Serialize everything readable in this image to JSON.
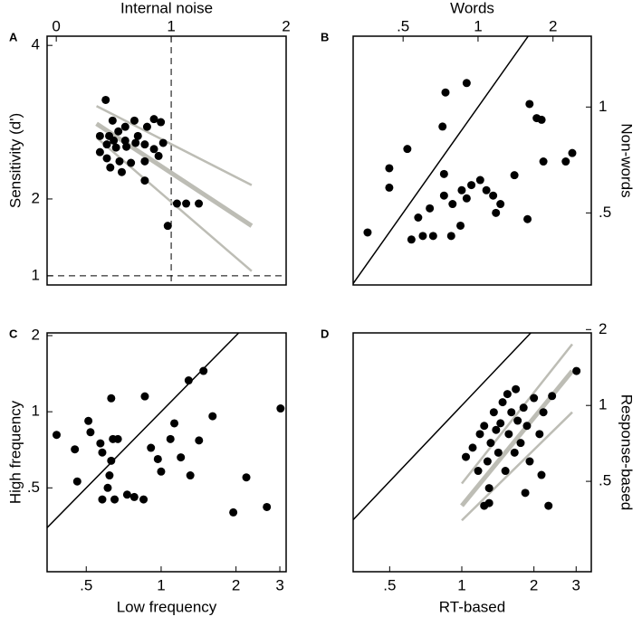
{
  "chart_data": [
    {
      "type": "scatter",
      "panel": "A",
      "xlabel": "Internal noise",
      "ylabel": "Sensitivity (d')",
      "xscale": "linear",
      "yscale": "linear",
      "xaxis": "top",
      "yaxis": "left",
      "xlim": [
        -0.08,
        2.0
      ],
      "ylim": [
        0.88,
        4.12
      ],
      "xticks": [
        0,
        1,
        2
      ],
      "yticks": [
        1,
        2,
        4
      ],
      "color": "#000000",
      "ref_x": 1,
      "ref_y": 1,
      "x": [
        0.43,
        0.49,
        0.38,
        0.46,
        0.54,
        0.6,
        0.68,
        0.71,
        0.79,
        0.85,
        0.91,
        0.44,
        0.52,
        0.61,
        0.69,
        0.77,
        0.85,
        0.93,
        0.38,
        0.44,
        0.55,
        0.65,
        0.77,
        0.89,
        0.47,
        0.57,
        0.77,
        1.05,
        1.13,
        1.24,
        0.97,
        0.6,
        0.5
      ],
      "values": [
        3.29,
        3.02,
        2.82,
        2.82,
        2.88,
        2.94,
        3.02,
        2.82,
        2.94,
        3.04,
        3.0,
        2.71,
        2.67,
        2.68,
        2.73,
        2.71,
        2.65,
        2.73,
        2.61,
        2.53,
        2.49,
        2.47,
        2.49,
        2.56,
        2.41,
        2.35,
        2.24,
        1.94,
        1.94,
        1.94,
        1.65,
        2.76,
        2.76
      ],
      "fit": {
        "x": [
          0.35,
          1.7
        ],
        "center": [
          2.98,
          1.65
        ],
        "upper": [
          3.21,
          2.18
        ],
        "lower": [
          2.8,
          1.06
        ]
      }
    },
    {
      "type": "scatter",
      "panel": "B",
      "xlabel": "Words",
      "ylabel": "Non-words",
      "xscale": "log",
      "yscale": "log",
      "xaxis": "top",
      "yaxis": "right",
      "xlim": [
        0.315,
        2.85
      ],
      "ylim": [
        0.312,
        1.59
      ],
      "xticks": [
        {
          "value": 0.5,
          "label": ".5"
        },
        1,
        2
      ],
      "yticks": [
        {
          "value": 0.5,
          "label": ".5"
        },
        1
      ],
      "color": "#000000",
      "identity_line": true,
      "x": [
        0.36,
        0.44,
        0.44,
        0.52,
        0.575,
        0.64,
        0.66,
        0.73,
        0.73,
        0.78,
        0.79,
        0.85,
        0.86,
        0.9,
        0.94,
        1.02,
        1.08,
        1.15,
        1.23,
        0.72,
        0.74,
        0.9,
        1.4,
        1.18,
        1.61,
        1.72,
        1.8,
        1.83,
        2.25,
        1.58,
        0.54,
        0.6,
        2.39
      ],
      "values": [
        0.44,
        0.67,
        0.59,
        0.76,
        0.485,
        0.515,
        0.43,
        0.56,
        0.645,
        0.43,
        0.53,
        0.46,
        0.58,
        0.55,
        0.6,
        0.62,
        0.58,
        0.56,
        0.53,
        0.88,
        1.1,
        1.17,
        0.64,
        0.5,
        1.02,
        0.93,
        0.92,
        0.7,
        0.7,
        0.48,
        0.42,
        0.43,
        0.74
      ]
    },
    {
      "type": "scatter",
      "panel": "C",
      "xlabel": "Low frequency",
      "ylabel": "High frequency",
      "xscale": "log",
      "yscale": "log",
      "xaxis": "bottom",
      "yaxis": "left",
      "xlim": [
        0.348,
        3.18
      ],
      "ylim": [
        0.233,
        2.05
      ],
      "xticks": [
        {
          "value": 0.5,
          "label": ".5"
        },
        1,
        2,
        3
      ],
      "yticks": [
        {
          "value": 0.5,
          "label": ".5"
        },
        1,
        2
      ],
      "color": "#000000",
      "identity_line": true,
      "x": [
        0.38,
        0.45,
        0.46,
        0.51,
        0.52,
        0.57,
        0.58,
        0.62,
        0.61,
        0.63,
        0.64,
        0.63,
        0.65,
        0.58,
        0.67,
        0.73,
        0.78,
        0.85,
        0.86,
        0.91,
        0.97,
        1.0,
        1.09,
        1.13,
        1.2,
        1.29,
        1.31,
        1.42,
        1.61,
        1.48,
        1.95,
        2.2,
        2.66,
        3.02
      ],
      "values": [
        0.81,
        0.71,
        0.53,
        0.92,
        0.83,
        0.75,
        0.69,
        0.56,
        0.5,
        0.64,
        0.78,
        1.13,
        0.45,
        0.45,
        0.78,
        0.47,
        0.46,
        0.45,
        1.15,
        0.72,
        0.65,
        0.58,
        0.78,
        0.9,
        0.66,
        1.33,
        0.56,
        0.77,
        0.96,
        1.45,
        0.4,
        0.55,
        0.42,
        1.03
      ]
    },
    {
      "type": "scatter",
      "panel": "D",
      "xlabel": "RT-based",
      "ylabel": "Response-based",
      "xscale": "log",
      "yscale": "log",
      "xaxis": "bottom",
      "yaxis": "right",
      "xlim": [
        0.352,
        3.47
      ],
      "ylim": [
        0.219,
        1.94
      ],
      "xticks": [
        {
          "value": 0.5,
          "label": ".5"
        },
        1,
        2,
        3
      ],
      "yticks": [
        {
          "value": 0.5,
          "label": ".5"
        },
        1,
        2
      ],
      "color": "#000000",
      "identity_line": true,
      "x": [
        1.04,
        1.11,
        1.17,
        1.19,
        1.24,
        1.28,
        1.3,
        1.32,
        1.36,
        1.39,
        1.42,
        1.45,
        1.48,
        1.52,
        1.55,
        1.57,
        1.61,
        1.66,
        1.68,
        1.71,
        1.76,
        1.81,
        1.84,
        1.87,
        1.92,
        2.0,
        2.11,
        2.15,
        2.19,
        2.3,
        2.38,
        1.24,
        1.3,
        3.01
      ],
      "values": [
        0.625,
        0.68,
        0.55,
        0.77,
        0.83,
        0.6,
        0.47,
        0.71,
        0.94,
        0.8,
        0.65,
        0.85,
        1.03,
        0.55,
        1.11,
        0.77,
        0.94,
        0.65,
        1.16,
        0.87,
        0.71,
        0.98,
        0.45,
        0.83,
        0.6,
        1.07,
        0.77,
        0.53,
        0.94,
        0.4,
        1.09,
        0.4,
        0.41,
        1.37
      ],
      "fit": {
        "x": [
          1.0,
          2.89
        ],
        "center": [
          0.4,
          1.37
        ],
        "upper": [
          0.49,
          1.75
        ],
        "lower": [
          0.35,
          0.94
        ]
      }
    }
  ]
}
